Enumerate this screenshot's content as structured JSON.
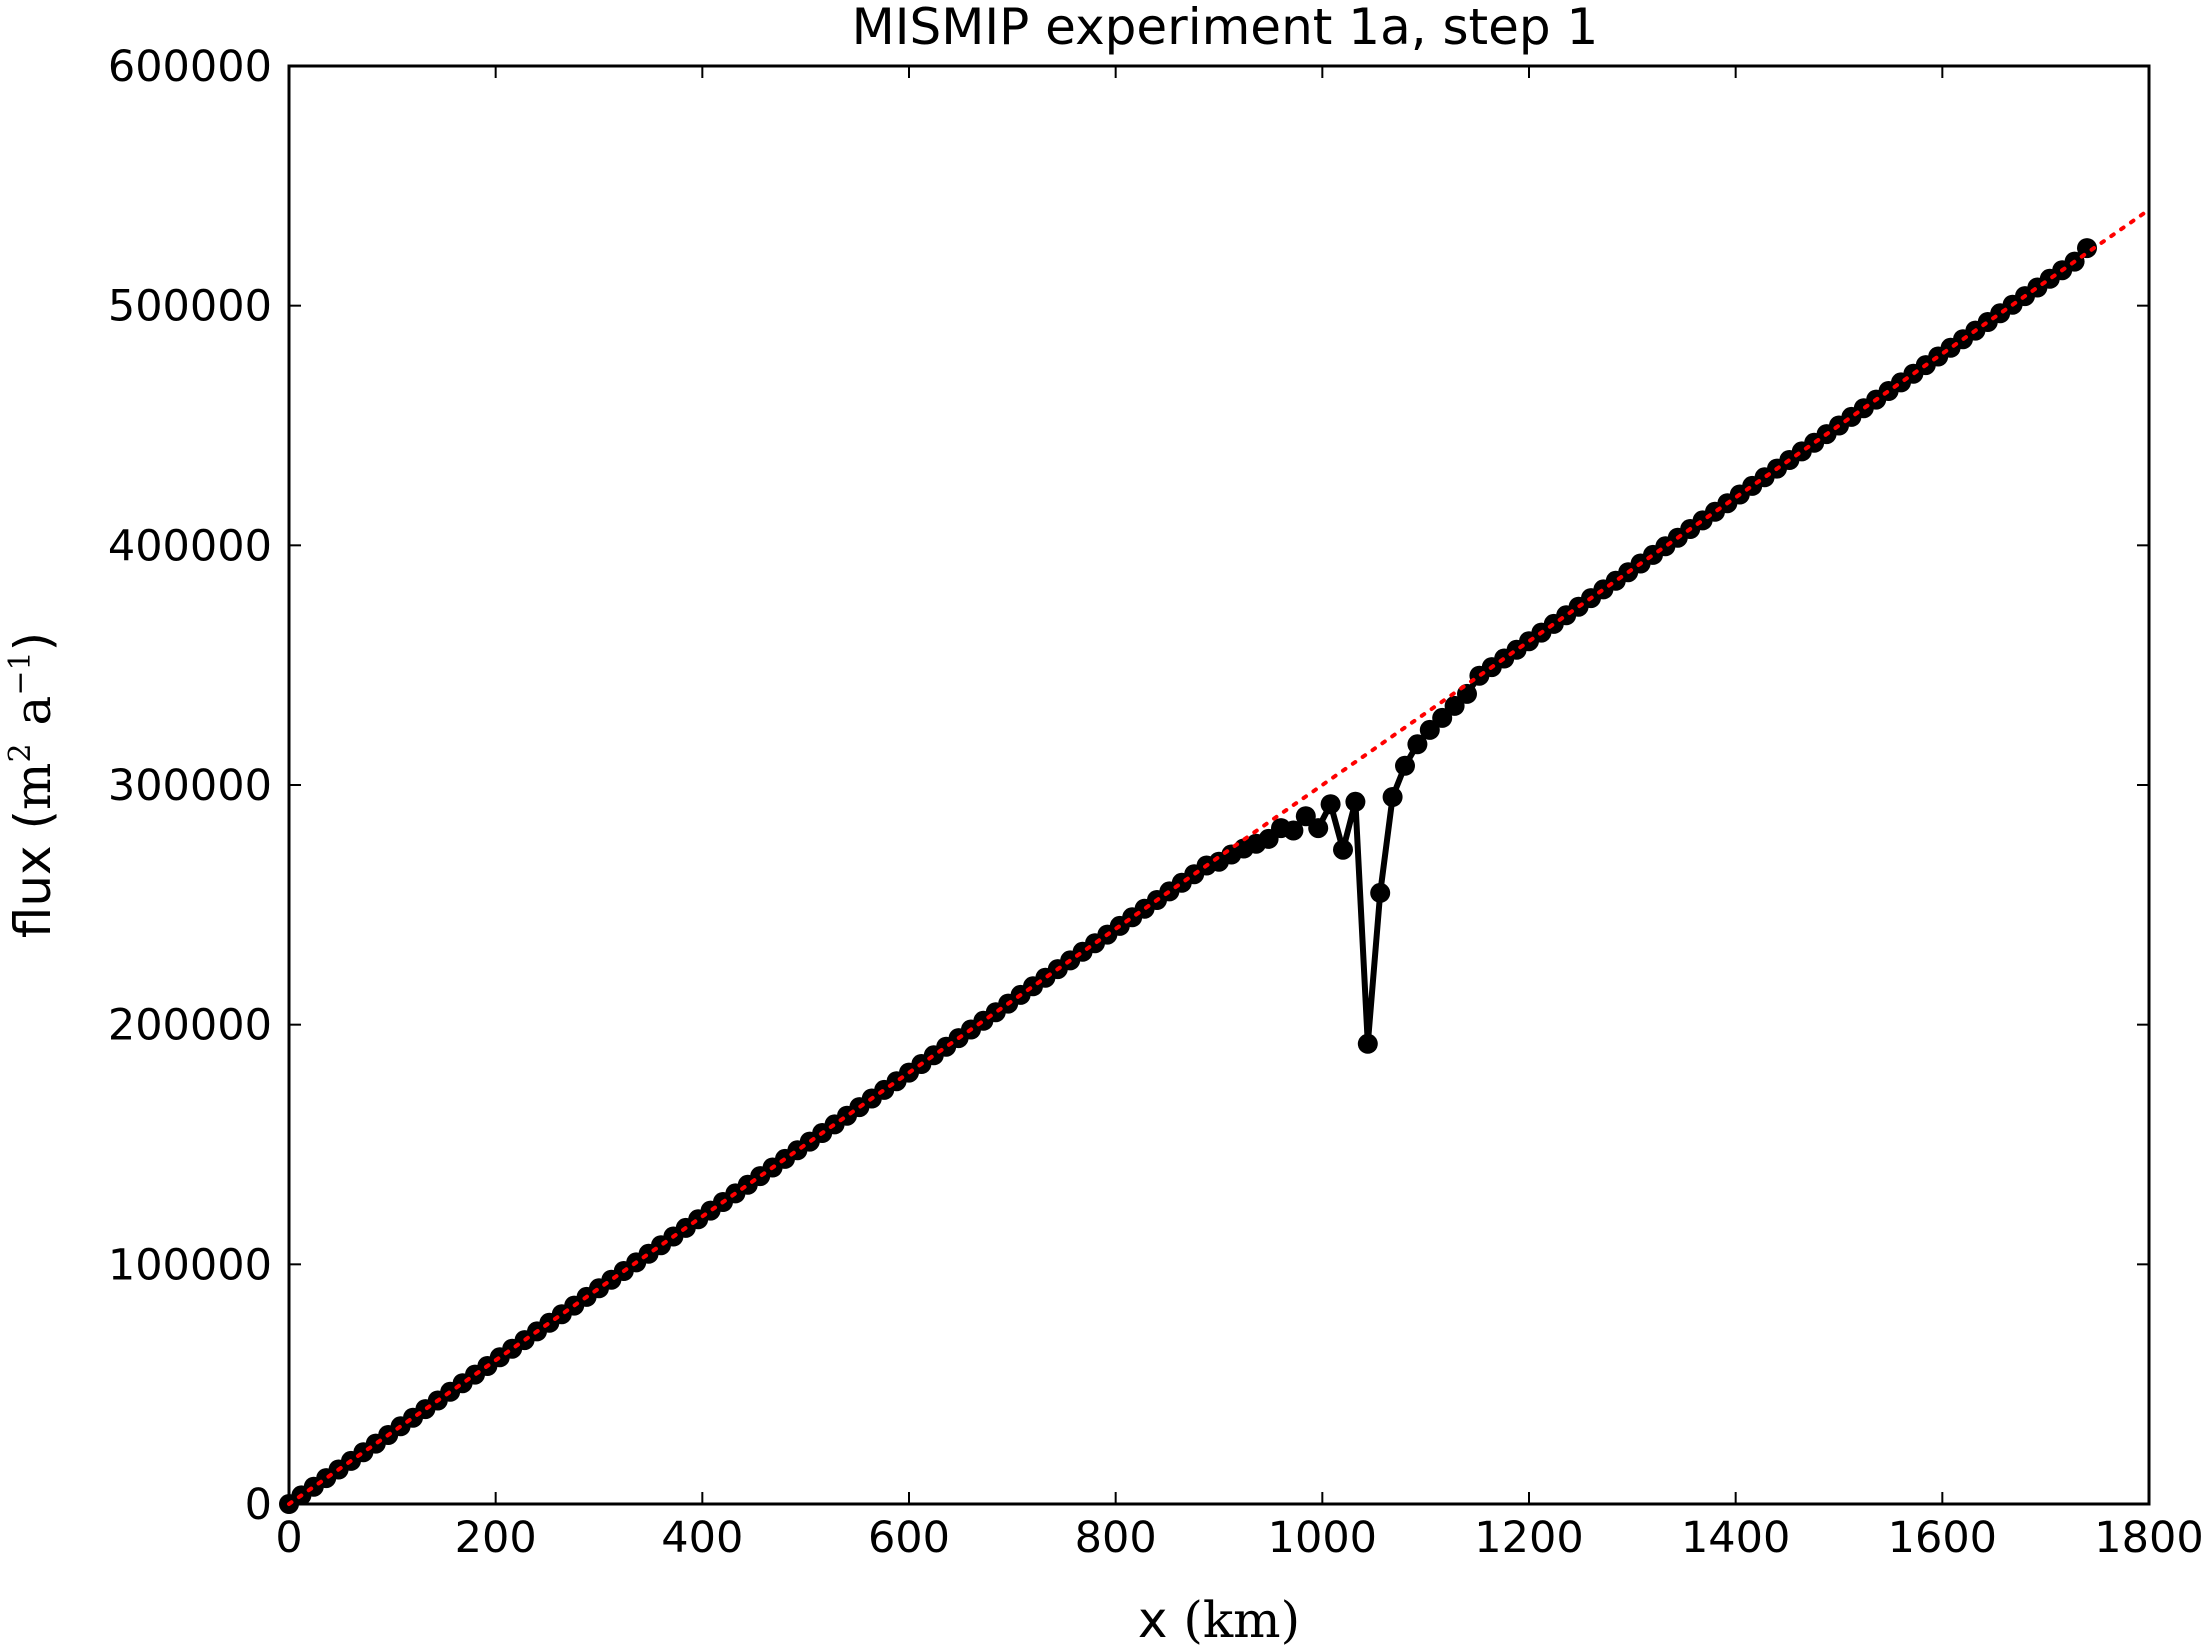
{
  "chart_data": {
    "type": "line",
    "title": "MISMIP experiment 1a, step 1",
    "xlabel": "x (km)",
    "ylabel": "flux (m^2 a^-1)",
    "xlabel_parts": {
      "main": "x ",
      "unit": "(km)"
    },
    "ylabel_parts": {
      "main": "flux ",
      "open": "(",
      "unit1": "m",
      "exp1": "2",
      "unit2": "a",
      "exp2": "−1",
      "close": ")"
    },
    "xlim": [
      0,
      1800
    ],
    "ylim": [
      0,
      600000
    ],
    "xticks": [
      0,
      200,
      400,
      600,
      800,
      1000,
      1200,
      1400,
      1600,
      1800
    ],
    "yticks": [
      0,
      100000,
      200000,
      300000,
      400000,
      500000,
      600000
    ],
    "xtick_labels": [
      "0",
      "200",
      "400",
      "600",
      "800",
      "1000",
      "1200",
      "1400",
      "1600",
      "1800"
    ],
    "ytick_labels": [
      "0",
      "100000",
      "200000",
      "300000",
      "400000",
      "500000",
      "600000"
    ],
    "grid": false,
    "series": [
      {
        "style": "solid line with circle markers",
        "color": "#000000",
        "x_start": 0,
        "x_step": 12,
        "n_points": 146,
        "y_per_km": 300,
        "x_end": 1740,
        "y_end": 524000,
        "deviations": [
          {
            "x": 900,
            "y": 268000
          },
          {
            "x": 912,
            "y": 271000
          },
          {
            "x": 924,
            "y": 273500
          },
          {
            "x": 936,
            "y": 275500
          },
          {
            "x": 948,
            "y": 277500
          },
          {
            "x": 960,
            "y": 282000
          },
          {
            "x": 972,
            "y": 281000
          },
          {
            "x": 984,
            "y": 287000
          },
          {
            "x": 996,
            "y": 282000
          },
          {
            "x": 1008,
            "y": 292000
          },
          {
            "x": 1020,
            "y": 273000
          },
          {
            "x": 1032,
            "y": 293000
          },
          {
            "x": 1044,
            "y": 192000
          },
          {
            "x": 1056,
            "y": 255000
          },
          {
            "x": 1068,
            "y": 295000
          },
          {
            "x": 1080,
            "y": 308000
          },
          {
            "x": 1092,
            "y": 317000
          },
          {
            "x": 1104,
            "y": 323000
          },
          {
            "x": 1116,
            "y": 328000
          },
          {
            "x": 1128,
            "y": 333000
          },
          {
            "x": 1140,
            "y": 338000
          }
        ]
      },
      {
        "style": "dotted line",
        "color": "#ff0000",
        "x": [
          0,
          1800
        ],
        "y": [
          0,
          540000
        ]
      }
    ]
  }
}
